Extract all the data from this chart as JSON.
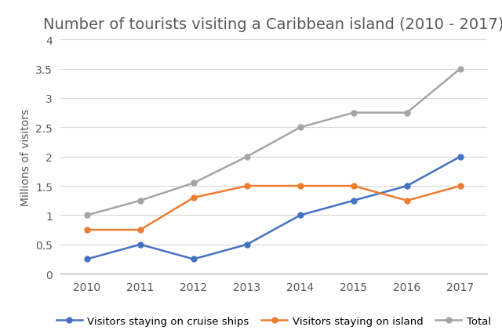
{
  "title": "Number of tourists visiting a Caribbean island (2010 - 2017)",
  "years": [
    2010,
    2011,
    2012,
    2013,
    2014,
    2015,
    2016,
    2017
  ],
  "cruise_ships": [
    0.25,
    0.5,
    0.25,
    0.5,
    1.0,
    1.25,
    1.5,
    2.0
  ],
  "island": [
    0.75,
    0.75,
    1.3,
    1.5,
    1.5,
    1.5,
    1.25,
    1.5
  ],
  "total": [
    1.0,
    1.25,
    1.55,
    2.0,
    2.5,
    2.75,
    2.75,
    3.5
  ],
  "cruise_color": "#4472C4",
  "island_color": "#ED7D31",
  "total_color": "#A5A5A5",
  "ylabel": "Millions of visitors",
  "ylim": [
    0,
    4
  ],
  "yticks": [
    0,
    0.5,
    1.0,
    1.5,
    2.0,
    2.5,
    3.0,
    3.5,
    4.0
  ],
  "ytick_labels": [
    "0",
    "0.5",
    "1",
    "1.5",
    "2",
    "2.5",
    "3",
    "3.5",
    "4"
  ],
  "legend_labels": [
    "Visitors staying on cruise ships",
    "Visitors staying on island",
    "Total"
  ],
  "background_color": "#ffffff",
  "title_color": "#595959",
  "title_fontsize": 14,
  "label_fontsize": 10,
  "tick_fontsize": 10,
  "legend_fontsize": 9.5,
  "grid_color": "#d9d9d9"
}
